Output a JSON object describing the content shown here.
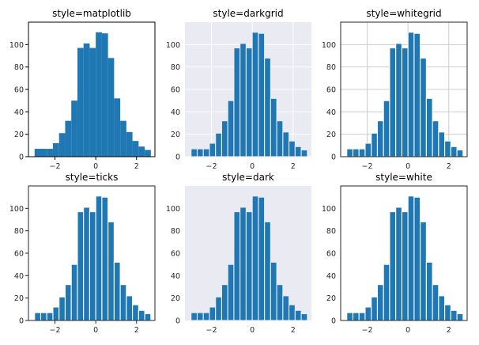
{
  "chart_data": [
    {
      "type": "bar",
      "title": "style=matplotlib",
      "style": "matplotlib",
      "background": "#ffffff",
      "grid": false,
      "frame": "all-sides",
      "bar_edges": false,
      "bar_color": "#1f77b4",
      "xlim": [
        -3.3,
        2.9
      ],
      "ylim": [
        0,
        120
      ],
      "xticks": [
        -2,
        0,
        2
      ],
      "yticks": [
        0,
        20,
        40,
        60,
        80,
        100
      ],
      "bin_edges": [
        -3.0,
        -2.7,
        -2.4,
        -2.1,
        -1.8,
        -1.5,
        -1.2,
        -0.9,
        -0.6,
        -0.3,
        0.0,
        0.3,
        0.6,
        0.9,
        1.2,
        1.5,
        1.8,
        2.1,
        2.4,
        2.7
      ],
      "values": [
        7,
        7,
        7,
        12,
        21,
        32,
        50,
        97,
        101,
        97,
        111,
        110,
        88,
        52,
        32,
        22,
        14,
        9,
        6
      ]
    },
    {
      "type": "bar",
      "title": "style=darkgrid",
      "style": "darkgrid",
      "background": "#eaeaf2",
      "grid": true,
      "frame": "none",
      "bar_edges": true,
      "bar_color": "#1f77b4",
      "xlim": [
        -3.3,
        2.9
      ],
      "ylim": [
        0,
        120
      ],
      "xticks": [
        -2,
        0,
        2
      ],
      "yticks": [
        0,
        20,
        40,
        60,
        80,
        100
      ],
      "bin_edges": [
        -3.0,
        -2.7,
        -2.4,
        -2.1,
        -1.8,
        -1.5,
        -1.2,
        -0.9,
        -0.6,
        -0.3,
        0.0,
        0.3,
        0.6,
        0.9,
        1.2,
        1.5,
        1.8,
        2.1,
        2.4,
        2.7
      ],
      "values": [
        7,
        7,
        7,
        12,
        21,
        32,
        50,
        97,
        101,
        97,
        111,
        110,
        88,
        52,
        32,
        22,
        14,
        9,
        6
      ]
    },
    {
      "type": "bar",
      "title": "style=whitegrid",
      "style": "whitegrid",
      "background": "#ffffff",
      "grid": true,
      "frame": "all-sides",
      "bar_edges": true,
      "bar_color": "#1f77b4",
      "xlim": [
        -3.3,
        2.9
      ],
      "ylim": [
        0,
        120
      ],
      "xticks": [
        -2,
        0,
        2
      ],
      "yticks": [
        0,
        20,
        40,
        60,
        80,
        100
      ],
      "bin_edges": [
        -3.0,
        -2.7,
        -2.4,
        -2.1,
        -1.8,
        -1.5,
        -1.2,
        -0.9,
        -0.6,
        -0.3,
        0.0,
        0.3,
        0.6,
        0.9,
        1.2,
        1.5,
        1.8,
        2.1,
        2.4,
        2.7
      ],
      "values": [
        7,
        7,
        7,
        12,
        21,
        32,
        50,
        97,
        101,
        97,
        111,
        110,
        88,
        52,
        32,
        22,
        14,
        9,
        6
      ]
    },
    {
      "type": "bar",
      "title": "style=ticks",
      "style": "ticks",
      "background": "#ffffff",
      "grid": false,
      "frame": "all-sides",
      "bar_edges": true,
      "bar_color": "#1f77b4",
      "xlim": [
        -3.3,
        2.9
      ],
      "ylim": [
        0,
        120
      ],
      "xticks": [
        -2,
        0,
        2
      ],
      "yticks": [
        0,
        20,
        40,
        60,
        80,
        100
      ],
      "bin_edges": [
        -3.0,
        -2.7,
        -2.4,
        -2.1,
        -1.8,
        -1.5,
        -1.2,
        -0.9,
        -0.6,
        -0.3,
        0.0,
        0.3,
        0.6,
        0.9,
        1.2,
        1.5,
        1.8,
        2.1,
        2.4,
        2.7
      ],
      "values": [
        7,
        7,
        7,
        12,
        21,
        32,
        50,
        97,
        101,
        97,
        111,
        110,
        88,
        52,
        32,
        22,
        14,
        9,
        6
      ]
    },
    {
      "type": "bar",
      "title": "style=dark",
      "style": "dark",
      "background": "#eaeaf2",
      "grid": false,
      "frame": "none",
      "bar_edges": true,
      "bar_color": "#1f77b4",
      "xlim": [
        -3.3,
        2.9
      ],
      "ylim": [
        0,
        120
      ],
      "xticks": [
        -2,
        0,
        2
      ],
      "yticks": [
        0,
        20,
        40,
        60,
        80,
        100
      ],
      "bin_edges": [
        -3.0,
        -2.7,
        -2.4,
        -2.1,
        -1.8,
        -1.5,
        -1.2,
        -0.9,
        -0.6,
        -0.3,
        0.0,
        0.3,
        0.6,
        0.9,
        1.2,
        1.5,
        1.8,
        2.1,
        2.4,
        2.7
      ],
      "values": [
        7,
        7,
        7,
        12,
        21,
        32,
        50,
        97,
        101,
        97,
        111,
        110,
        88,
        52,
        32,
        22,
        14,
        9,
        6
      ]
    },
    {
      "type": "bar",
      "title": "style=white",
      "style": "white",
      "background": "#ffffff",
      "grid": false,
      "frame": "all-sides",
      "bar_edges": true,
      "bar_color": "#1f77b4",
      "xlim": [
        -3.3,
        2.9
      ],
      "ylim": [
        0,
        120
      ],
      "xticks": [
        -2,
        0,
        2
      ],
      "yticks": [
        0,
        20,
        40,
        60,
        80,
        100
      ],
      "bin_edges": [
        -3.0,
        -2.7,
        -2.4,
        -2.1,
        -1.8,
        -1.5,
        -1.2,
        -0.9,
        -0.6,
        -0.3,
        0.0,
        0.3,
        0.6,
        0.9,
        1.2,
        1.5,
        1.8,
        2.1,
        2.4,
        2.7
      ],
      "values": [
        7,
        7,
        7,
        12,
        21,
        32,
        50,
        97,
        101,
        97,
        111,
        110,
        88,
        52,
        32,
        22,
        14,
        9,
        6
      ]
    }
  ]
}
